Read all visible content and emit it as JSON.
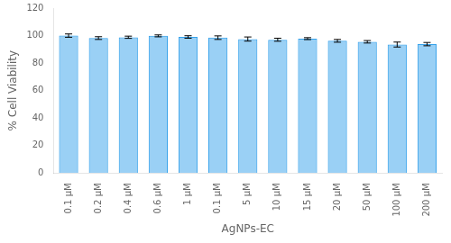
{
  "chart_data": {
    "type": "bar",
    "categories": [
      "0.1 μM",
      "0.2 μM",
      "0.4 μM",
      "0.6 μM",
      "1 μM",
      "0.1 μM",
      "5 μM",
      "10 μM",
      "15 μM",
      "20 μM",
      "50 μM",
      "100 μM",
      "200 μM"
    ],
    "values": [
      100.0,
      98.2,
      98.8,
      99.8,
      99.0,
      98.5,
      97.5,
      97.0,
      97.8,
      96.2,
      95.5,
      93.5,
      93.8
    ],
    "errors": [
      1.2,
      1.0,
      0.8,
      0.7,
      0.9,
      1.3,
      1.5,
      1.1,
      0.7,
      1.0,
      0.9,
      1.8,
      1.2
    ],
    "xlabel": "AgNPs-EC",
    "ylabel": "% Cell Viability",
    "ylim": [
      0,
      120
    ],
    "yticks": [
      0,
      20,
      40,
      60,
      80,
      100,
      120
    ],
    "grid": false
  }
}
